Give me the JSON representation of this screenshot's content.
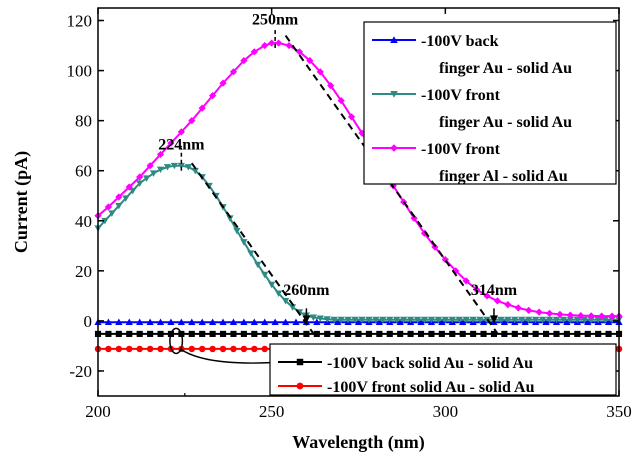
{
  "chart_data": {
    "type": "line",
    "xlabel": "Wavelength (nm)",
    "ylabel": "Current (pA)",
    "xlim": [
      200,
      350
    ],
    "ylim": [
      -30,
      125
    ],
    "xticks": [
      200,
      250,
      300,
      350
    ],
    "yticks": [
      -20,
      0,
      20,
      40,
      60,
      80,
      100,
      120
    ],
    "grid": false,
    "legends": [
      {
        "placement": "top-right",
        "entries": [
          {
            "series": 0,
            "lines": [
              "-100V back",
              "finger Au - solid Au"
            ]
          },
          {
            "series": 1,
            "lines": [
              "-100V front",
              "finger Au - solid Au"
            ]
          },
          {
            "series": 2,
            "lines": [
              "-100V front",
              "finger Al - solid Au"
            ]
          }
        ]
      },
      {
        "placement": "bottom-right",
        "entries": [
          {
            "series": 3,
            "lines": [
              "-100V back  solid Au - solid Au"
            ]
          },
          {
            "series": 4,
            "lines": [
              "-100V front  solid Au - solid Au"
            ]
          }
        ]
      }
    ],
    "series": [
      {
        "color": "#0000ff",
        "marker": "triangle-up",
        "points": [
          [
            200,
            -0.5
          ],
          [
            203,
            -0.5
          ],
          [
            206,
            -0.5
          ],
          [
            209,
            -0.5
          ],
          [
            212,
            -0.5
          ],
          [
            215,
            -0.5
          ],
          [
            218,
            -0.5
          ],
          [
            221,
            -0.5
          ],
          [
            224,
            -0.5
          ],
          [
            227,
            -0.5
          ],
          [
            230,
            -0.5
          ],
          [
            233,
            -0.5
          ],
          [
            236,
            -0.5
          ],
          [
            239,
            -0.5
          ],
          [
            242,
            -0.5
          ],
          [
            245,
            -0.5
          ],
          [
            248,
            -0.5
          ],
          [
            251,
            -0.5
          ],
          [
            254,
            -0.5
          ],
          [
            257,
            -0.5
          ],
          [
            260,
            -0.5
          ],
          [
            263,
            -0.5
          ],
          [
            266,
            -0.5
          ],
          [
            269,
            -0.5
          ],
          [
            272,
            -0.5
          ],
          [
            275,
            -0.5
          ],
          [
            278,
            -0.5
          ],
          [
            281,
            -0.5
          ],
          [
            284,
            -0.5
          ],
          [
            287,
            -0.5
          ],
          [
            290,
            -0.5
          ],
          [
            293,
            -0.5
          ],
          [
            296,
            -0.5
          ],
          [
            299,
            -0.5
          ],
          [
            302,
            -0.5
          ],
          [
            305,
            -0.5
          ],
          [
            308,
            -0.5
          ],
          [
            311,
            -0.5
          ],
          [
            314,
            -0.5
          ],
          [
            317,
            -0.5
          ],
          [
            320,
            -0.5
          ],
          [
            323,
            -0.5
          ],
          [
            326,
            -0.5
          ],
          [
            329,
            -0.5
          ],
          [
            332,
            -0.5
          ],
          [
            335,
            -0.5
          ],
          [
            338,
            -0.5
          ],
          [
            341,
            -0.5
          ],
          [
            344,
            -0.5
          ],
          [
            347,
            -0.5
          ],
          [
            350,
            -0.5
          ]
        ]
      },
      {
        "color": "#2e8b83",
        "marker": "triangle-down",
        "points": [
          [
            200,
            37
          ],
          [
            202,
            40
          ],
          [
            204,
            43
          ],
          [
            206,
            46
          ],
          [
            208,
            49
          ],
          [
            210,
            52
          ],
          [
            212,
            55
          ],
          [
            214,
            57
          ],
          [
            216,
            59
          ],
          [
            218,
            60.5
          ],
          [
            220,
            61.5
          ],
          [
            222,
            62
          ],
          [
            224,
            62
          ],
          [
            226,
            61.5
          ],
          [
            228,
            60
          ],
          [
            230,
            57.5
          ],
          [
            232,
            54
          ],
          [
            234,
            50
          ],
          [
            236,
            45.5
          ],
          [
            238,
            41
          ],
          [
            240,
            36
          ],
          [
            242,
            31.5
          ],
          [
            244,
            27
          ],
          [
            246,
            22.5
          ],
          [
            248,
            18.5
          ],
          [
            250,
            14.5
          ],
          [
            252,
            11
          ],
          [
            254,
            8
          ],
          [
            256,
            5.5
          ],
          [
            258,
            3.5
          ],
          [
            260,
            2.2
          ],
          [
            262,
            1.4
          ],
          [
            264,
            1
          ],
          [
            266,
            0.7
          ],
          [
            268,
            0.5
          ],
          [
            270,
            0.5
          ],
          [
            272,
            0.5
          ],
          [
            274,
            0.5
          ],
          [
            276,
            0.5
          ],
          [
            278,
            0.5
          ],
          [
            280,
            0.5
          ],
          [
            282,
            0.5
          ],
          [
            284,
            0.5
          ],
          [
            286,
            0.5
          ],
          [
            288,
            0.5
          ],
          [
            290,
            0.5
          ],
          [
            292,
            0.5
          ],
          [
            294,
            0.5
          ],
          [
            296,
            0.5
          ],
          [
            298,
            0.5
          ],
          [
            300,
            0.5
          ],
          [
            302,
            0.5
          ],
          [
            304,
            0.5
          ],
          [
            306,
            0.5
          ],
          [
            308,
            0.5
          ],
          [
            310,
            0.5
          ],
          [
            312,
            0.5
          ],
          [
            314,
            0.5
          ],
          [
            316,
            0.5
          ],
          [
            318,
            0.5
          ],
          [
            320,
            0.5
          ],
          [
            322,
            0.5
          ],
          [
            324,
            0.5
          ],
          [
            326,
            0.5
          ],
          [
            328,
            0.5
          ],
          [
            330,
            0.5
          ],
          [
            332,
            0.5
          ],
          [
            334,
            0.5
          ],
          [
            336,
            0.5
          ],
          [
            338,
            0.5
          ],
          [
            340,
            0.5
          ],
          [
            342,
            0.5
          ],
          [
            344,
            0.5
          ],
          [
            346,
            0.5
          ],
          [
            348,
            0.5
          ],
          [
            350,
            0.5
          ]
        ]
      },
      {
        "color": "#ff00ff",
        "marker": "diamond",
        "points": [
          [
            200,
            42
          ],
          [
            203,
            45.5
          ],
          [
            206,
            49.5
          ],
          [
            209,
            53.5
          ],
          [
            212,
            57.5
          ],
          [
            215,
            62
          ],
          [
            218,
            66.5
          ],
          [
            221,
            71
          ],
          [
            224,
            75.5
          ],
          [
            227,
            80
          ],
          [
            230,
            85
          ],
          [
            233,
            90
          ],
          [
            236,
            95
          ],
          [
            239,
            99.5
          ],
          [
            242,
            104
          ],
          [
            245,
            107.5
          ],
          [
            248,
            110
          ],
          [
            250,
            111
          ],
          [
            252,
            111
          ],
          [
            255,
            110
          ],
          [
            258,
            107.5
          ],
          [
            261,
            104
          ],
          [
            264,
            99.5
          ],
          [
            267,
            94
          ],
          [
            270,
            88
          ],
          [
            273,
            81.5
          ],
          [
            276,
            75
          ],
          [
            279,
            68
          ],
          [
            282,
            61
          ],
          [
            285,
            54
          ],
          [
            288,
            47.5
          ],
          [
            291,
            41
          ],
          [
            294,
            35
          ],
          [
            297,
            29.5
          ],
          [
            300,
            24.5
          ],
          [
            303,
            20
          ],
          [
            306,
            16
          ],
          [
            309,
            12.5
          ],
          [
            312,
            10
          ],
          [
            315,
            8
          ],
          [
            318,
            6.5
          ],
          [
            321,
            5.2
          ],
          [
            324,
            4.2
          ],
          [
            327,
            3.5
          ],
          [
            330,
            3
          ],
          [
            333,
            2.6
          ],
          [
            336,
            2.3
          ],
          [
            339,
            2.1
          ],
          [
            342,
            2
          ],
          [
            345,
            1.9
          ],
          [
            348,
            1.9
          ],
          [
            350,
            1.9
          ]
        ]
      },
      {
        "color": "#000000",
        "marker": "square",
        "points": [
          [
            200,
            -5.2
          ],
          [
            203,
            -5.2
          ],
          [
            206,
            -5.2
          ],
          [
            209,
            -5.2
          ],
          [
            212,
            -5.2
          ],
          [
            215,
            -5.2
          ],
          [
            218,
            -5.2
          ],
          [
            221,
            -5.2
          ],
          [
            224,
            -5.2
          ],
          [
            227,
            -5.2
          ],
          [
            230,
            -5.2
          ],
          [
            233,
            -5.2
          ],
          [
            236,
            -5.2
          ],
          [
            239,
            -5.2
          ],
          [
            242,
            -5.2
          ],
          [
            245,
            -5.2
          ],
          [
            248,
            -5.2
          ],
          [
            251,
            -5.2
          ],
          [
            254,
            -5.2
          ],
          [
            257,
            -5.2
          ],
          [
            260,
            -5.2
          ],
          [
            263,
            -5.2
          ],
          [
            266,
            -5.2
          ],
          [
            269,
            -5.2
          ],
          [
            272,
            -5.2
          ],
          [
            275,
            -5.2
          ],
          [
            278,
            -5.2
          ],
          [
            281,
            -5.2
          ],
          [
            284,
            -5.2
          ],
          [
            287,
            -5.2
          ],
          [
            290,
            -5.2
          ],
          [
            293,
            -5.2
          ],
          [
            296,
            -5.2
          ],
          [
            299,
            -5.2
          ],
          [
            302,
            -5.2
          ],
          [
            305,
            -5.2
          ],
          [
            308,
            -5.2
          ],
          [
            311,
            -5.2
          ],
          [
            314,
            -5.2
          ],
          [
            317,
            -5.2
          ],
          [
            320,
            -5.2
          ],
          [
            323,
            -5.2
          ],
          [
            326,
            -5.2
          ],
          [
            329,
            -5.2
          ],
          [
            332,
            -5.2
          ],
          [
            335,
            -5.2
          ],
          [
            338,
            -5.2
          ],
          [
            341,
            -5.2
          ],
          [
            344,
            -5.2
          ],
          [
            347,
            -5.2
          ],
          [
            350,
            -5.2
          ]
        ]
      },
      {
        "color": "#ff0000",
        "marker": "circle",
        "points": [
          [
            200,
            -11.2
          ],
          [
            203,
            -11.2
          ],
          [
            206,
            -11.2
          ],
          [
            209,
            -11.2
          ],
          [
            212,
            -11.2
          ],
          [
            215,
            -11.2
          ],
          [
            218,
            -11.2
          ],
          [
            221,
            -11.2
          ],
          [
            224,
            -11.2
          ],
          [
            227,
            -11.2
          ],
          [
            230,
            -11.2
          ],
          [
            233,
            -11.2
          ],
          [
            236,
            -11.2
          ],
          [
            239,
            -11.2
          ],
          [
            242,
            -11.2
          ],
          [
            245,
            -11.2
          ],
          [
            248,
            -11.2
          ],
          [
            251,
            -11.2
          ],
          [
            254,
            -11.2
          ],
          [
            257,
            -11.2
          ],
          [
            260,
            -11.2
          ],
          [
            263,
            -11.2
          ],
          [
            266,
            -11.2
          ],
          [
            269,
            -11.2
          ],
          [
            272,
            -11.2
          ],
          [
            275,
            -11.2
          ],
          [
            278,
            -11.2
          ],
          [
            281,
            -11.2
          ],
          [
            284,
            -11.2
          ],
          [
            287,
            -11.2
          ],
          [
            290,
            -11.2
          ],
          [
            293,
            -11.2
          ],
          [
            296,
            -11.2
          ],
          [
            299,
            -11.2
          ],
          [
            302,
            -11.2
          ],
          [
            305,
            -11.2
          ],
          [
            308,
            -11.2
          ],
          [
            311,
            -11.2
          ],
          [
            314,
            -11.2
          ],
          [
            317,
            -11.2
          ],
          [
            320,
            -11.2
          ],
          [
            323,
            -11.2
          ],
          [
            326,
            -11.2
          ],
          [
            329,
            -11.2
          ],
          [
            332,
            -11.2
          ],
          [
            335,
            -11.2
          ],
          [
            338,
            -11.2
          ],
          [
            341,
            -11.2
          ],
          [
            344,
            -11.2
          ],
          [
            347,
            -11.2
          ],
          [
            350,
            -11.2
          ]
        ]
      }
    ],
    "annotations": [
      {
        "text": "250nm",
        "x": 251,
        "y": 116,
        "line": [
          [
            251,
            109
          ],
          [
            251,
            117
          ]
        ]
      },
      {
        "text": "224nm",
        "x": 224,
        "y": 66,
        "line": [
          [
            224,
            60
          ],
          [
            224,
            69
          ]
        ]
      },
      {
        "text": "260nm",
        "x": 260,
        "y": 8,
        "line": [
          [
            260,
            -1
          ],
          [
            260,
            5
          ]
        ]
      },
      {
        "text": "314nm",
        "x": 314,
        "y": 8,
        "line": [
          [
            314,
            -1
          ],
          [
            314,
            5
          ]
        ]
      }
    ],
    "fit_lines": [
      {
        "from": [
          254,
          114
        ],
        "to": [
          315,
          -5
        ]
      },
      {
        "from": [
          227,
          63
        ],
        "to": [
          262,
          -5
        ]
      }
    ],
    "callout": {
      "ellipse_center": [
        222.5,
        -8
      ],
      "ellipse_radii": [
        1.8,
        5
      ],
      "target": [
        270,
        -13
      ]
    }
  }
}
